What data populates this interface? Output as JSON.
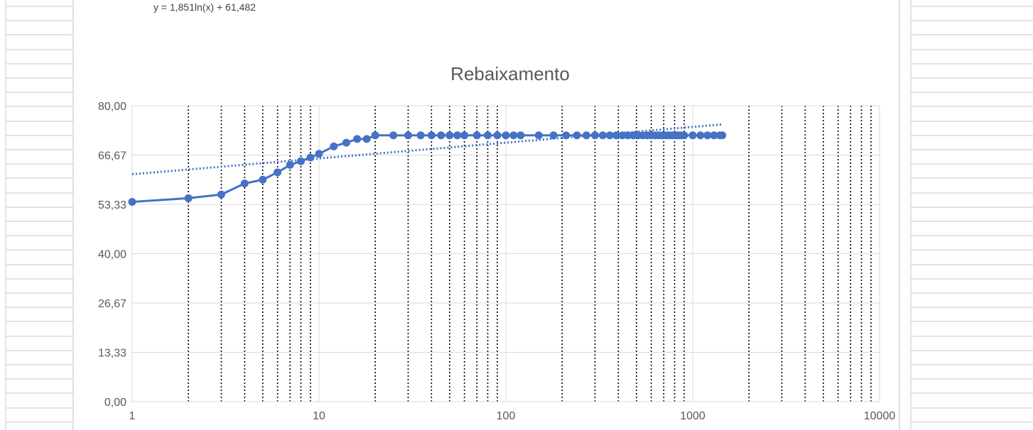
{
  "trendline": {
    "equation": "y = 1,851ln(x) + 61,482",
    "a": 1.851,
    "b": 61.482,
    "color": "#4472c4",
    "style": "dotted"
  },
  "chart_data": {
    "type": "scatter",
    "title": "Rebaixamento",
    "x_scale": "log",
    "xlim": [
      1,
      10000
    ],
    "ylim": [
      0,
      80
    ],
    "x_ticks": [
      "1",
      "10",
      "100",
      "1000",
      "10000"
    ],
    "y_ticks": [
      "0,00",
      "13,33",
      "26,67",
      "40,00",
      "53,33",
      "66,67",
      "80,00"
    ],
    "y_tick_values": [
      0,
      13.33,
      26.67,
      40,
      53.33,
      66.67,
      80
    ],
    "grid": "major horizontal, major and minor vertical (minor dotted)",
    "legend": "none",
    "series_color": "#4472c4",
    "series": [
      {
        "x": [
          1,
          2,
          3,
          4,
          5,
          6,
          7,
          8,
          9,
          10,
          12,
          14,
          16,
          18,
          20,
          25,
          30,
          35,
          40,
          45,
          50,
          55,
          60,
          70,
          80,
          90,
          100,
          110,
          120,
          150,
          180,
          210,
          240,
          270,
          300,
          330,
          360,
          390,
          420,
          450,
          480,
          510,
          540,
          570,
          600,
          630,
          660,
          690,
          720,
          750,
          780,
          810,
          840,
          870,
          900,
          1000,
          1100,
          1200,
          1300,
          1400,
          1440
        ],
        "y": [
          54,
          55,
          56,
          59,
          60,
          62,
          64,
          65,
          66,
          67,
          69,
          70,
          71,
          71,
          72,
          72,
          72,
          72,
          72,
          72,
          72,
          72,
          72,
          72,
          72,
          72,
          72,
          72,
          72,
          72,
          72,
          72,
          72,
          72,
          72,
          72,
          72,
          72,
          72,
          72,
          72,
          72,
          72,
          72,
          72,
          72,
          72,
          72,
          72,
          72,
          72,
          72,
          72,
          72,
          72,
          72,
          72,
          72,
          72,
          72,
          72
        ]
      }
    ]
  }
}
